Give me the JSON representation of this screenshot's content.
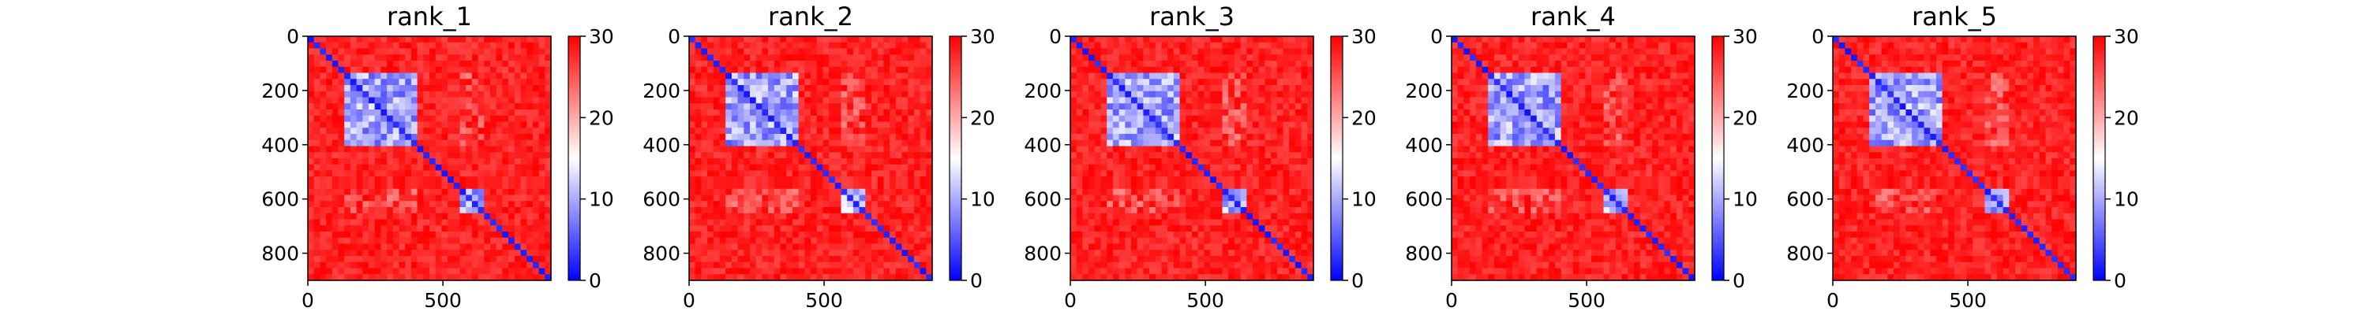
{
  "chart_data": [
    {
      "type": "heatmap",
      "title": "rank_1",
      "xlim": [
        0,
        900
      ],
      "ylim": [
        900,
        0
      ],
      "x_ticks": [
        "0",
        "500"
      ],
      "y_ticks": [
        "0",
        "200",
        "400",
        "600",
        "800"
      ],
      "colorbar": {
        "range": [
          0,
          30
        ],
        "ticks": [
          "0",
          "10",
          "20",
          "30"
        ],
        "colormap": "bwr"
      }
    },
    {
      "type": "heatmap",
      "title": "rank_2",
      "xlim": [
        0,
        900
      ],
      "ylim": [
        900,
        0
      ],
      "x_ticks": [
        "0",
        "500"
      ],
      "y_ticks": [
        "0",
        "200",
        "400",
        "600",
        "800"
      ],
      "colorbar": {
        "range": [
          0,
          30
        ],
        "ticks": [
          "0",
          "10",
          "20",
          "30"
        ],
        "colormap": "bwr"
      }
    },
    {
      "type": "heatmap",
      "title": "rank_3",
      "xlim": [
        0,
        900
      ],
      "ylim": [
        900,
        0
      ],
      "x_ticks": [
        "0",
        "500"
      ],
      "y_ticks": [
        "0",
        "200",
        "400",
        "600",
        "800"
      ],
      "colorbar": {
        "range": [
          0,
          30
        ],
        "ticks": [
          "0",
          "10",
          "20",
          "30"
        ],
        "colormap": "bwr"
      }
    },
    {
      "type": "heatmap",
      "title": "rank_4",
      "xlim": [
        0,
        900
      ],
      "ylim": [
        900,
        0
      ],
      "x_ticks": [
        "0",
        "500"
      ],
      "y_ticks": [
        "0",
        "200",
        "400",
        "600",
        "800"
      ],
      "colorbar": {
        "range": [
          0,
          30
        ],
        "ticks": [
          "0",
          "10",
          "20",
          "30"
        ],
        "colormap": "bwr"
      }
    },
    {
      "type": "heatmap",
      "title": "rank_5",
      "xlim": [
        0,
        900
      ],
      "ylim": [
        900,
        0
      ],
      "x_ticks": [
        "0",
        "500"
      ],
      "y_ticks": [
        "0",
        "200",
        "400",
        "600",
        "800"
      ],
      "colorbar": {
        "range": [
          0,
          30
        ],
        "ticks": [
          "0",
          "10",
          "20",
          "30"
        ],
        "colormap": "bwr"
      }
    }
  ],
  "colors": {
    "low": "#0000ff",
    "mid": "#ffffff",
    "high": "#ff0000"
  }
}
